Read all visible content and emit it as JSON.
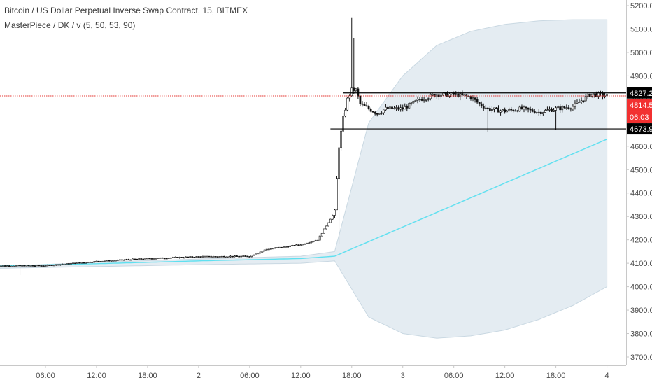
{
  "header": {
    "symbol_title": "Bitcoin / US Dollar Perpetual Inverse Swap Contract, 15, BITMEX",
    "indicator_title": "MasterPiece / DK / v (5, 50, 53, 90)"
  },
  "colors": {
    "candle": "#111111",
    "band_fill": "#dfe9f0",
    "band_stroke": "#c9d8e2",
    "ma_line": "#5fe0f0",
    "current_price_line": "#e53935",
    "current_price_tag": "#f23030",
    "level_line": "#000000",
    "axis_border": "#c8c8c8"
  },
  "chart_data": {
    "type": "candlestick",
    "title": "Bitcoin / US Dollar Perpetual Inverse Swap Contract, 15, BITMEX",
    "interval": "15",
    "ylim": [
      3680,
      5220
    ],
    "y_ticks": [
      "5200.0",
      "5100.0",
      "5000.0",
      "4900.0",
      "4800.0",
      "4700.0",
      "4600.0",
      "4500.0",
      "4400.0",
      "4300.0",
      "4200.0",
      "4100.0",
      "4000.0",
      "3900.0",
      "3800.0",
      "3700.0"
    ],
    "x_ticks": [
      "06:00",
      "12:00",
      "18:00",
      "2",
      "06:00",
      "12:00",
      "18:00",
      "3",
      "06:00",
      "12:00",
      "18:00",
      "4"
    ],
    "price_tags": {
      "upper_level": "4827.2",
      "current_price": "4814.5",
      "countdown": "06:03",
      "lower_level": "4673.9"
    },
    "levels": {
      "upper": 4827.2,
      "lower": 4673.9,
      "current": 4814.5
    },
    "price_path": [
      [
        0,
        4089
      ],
      [
        6,
        4090
      ],
      [
        12,
        4108
      ],
      [
        18,
        4120
      ],
      [
        24,
        4128
      ],
      [
        30,
        4130
      ],
      [
        32,
        4160
      ],
      [
        36,
        4180
      ],
      [
        38,
        4200
      ],
      [
        40,
        4320
      ],
      [
        40.5,
        4600
      ],
      [
        41,
        4720
      ],
      [
        41.5,
        4800
      ],
      [
        42,
        4840
      ],
      [
        42.5,
        4840
      ],
      [
        43,
        4780
      ],
      [
        44,
        4760
      ],
      [
        45,
        4740
      ],
      [
        46,
        4760
      ],
      [
        48,
        4760
      ],
      [
        50,
        4800
      ],
      [
        52,
        4820
      ],
      [
        54,
        4820
      ],
      [
        56,
        4810
      ],
      [
        57,
        4780
      ],
      [
        58,
        4760
      ],
      [
        60,
        4750
      ],
      [
        62,
        4760
      ],
      [
        64,
        4745
      ],
      [
        66,
        4760
      ],
      [
        68,
        4770
      ],
      [
        70,
        4820
      ],
      [
        71,
        4820
      ],
      [
        72,
        4815
      ]
    ],
    "series": [
      {
        "name": "MasterPiece / DK / v",
        "values": [
          [
            0,
            4088
          ],
          [
            12,
            4098
          ],
          [
            24,
            4110
          ],
          [
            36,
            4120
          ],
          [
            40,
            4130
          ],
          [
            72,
            4630
          ]
        ]
      }
    ],
    "band": {
      "upper": [
        [
          0,
          4086
        ],
        [
          12,
          4104
        ],
        [
          24,
          4118
        ],
        [
          36,
          4130
        ],
        [
          40,
          4150
        ],
        [
          44,
          4700
        ],
        [
          48,
          4900
        ],
        [
          52,
          5030
        ],
        [
          56,
          5090
        ],
        [
          60,
          5120
        ],
        [
          64,
          5135
        ],
        [
          68,
          5140
        ],
        [
          72,
          5140
        ]
      ],
      "lower": [
        [
          0,
          4078
        ],
        [
          12,
          4086
        ],
        [
          24,
          4094
        ],
        [
          36,
          4100
        ],
        [
          40,
          4110
        ],
        [
          44,
          3870
        ],
        [
          48,
          3800
        ],
        [
          52,
          3780
        ],
        [
          56,
          3790
        ],
        [
          60,
          3815
        ],
        [
          64,
          3860
        ],
        [
          68,
          3920
        ],
        [
          72,
          4000
        ]
      ]
    }
  }
}
